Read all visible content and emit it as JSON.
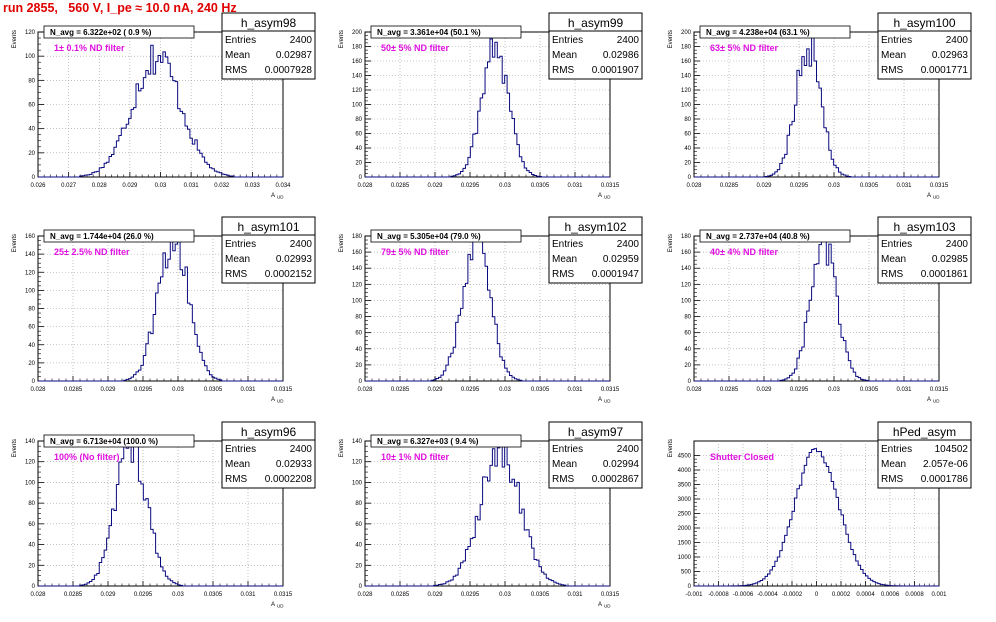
{
  "page_title": "run 2855,   560 V, I_pe ≈ 10.0 nA, 240 Hz",
  "stats_labels": {
    "entries": "Entries",
    "mean": "Mean",
    "rms": "RMS"
  },
  "colors": {
    "histogram": "#0a0a80",
    "annotation": "#e010e0",
    "grid": "#9a9a9a",
    "title": "#e00000"
  },
  "chart_data": [
    {
      "type": "bar",
      "name": "h_asym98",
      "header": "N_avg = 6.322e+02 ( 0.9 %)",
      "annotation": "1± 0.1% ND filter",
      "entries": "2400",
      "mean": "0.02987",
      "rms": "0.0007928",
      "xlabel": "A_UD",
      "ylabel": "Events",
      "xlim": [
        0.026,
        0.034
      ],
      "ylim": [
        0,
        120
      ],
      "xticks": [
        0.026,
        0.027,
        0.028,
        0.029,
        0.03,
        0.031,
        0.032,
        0.033,
        0.034
      ],
      "xtick_labels": [
        "0.026",
        "0.027",
        "0.028",
        "0.029",
        "0.03",
        "0.031",
        "0.032",
        "0.033",
        "0.034"
      ],
      "yticks": [
        0,
        20,
        40,
        60,
        80,
        100,
        120
      ],
      "peak": 100
    },
    {
      "type": "bar",
      "name": "h_asym99",
      "header": "N_avg = 3.361e+04 (50.1 %)",
      "annotation": "50± 5% ND filter",
      "entries": "2400",
      "mean": "0.02986",
      "rms": "0.0001907",
      "xlabel": "A_UD",
      "ylabel": "Events",
      "xlim": [
        0.028,
        0.0315
      ],
      "ylim": [
        0,
        200
      ],
      "xticks": [
        0.028,
        0.0285,
        0.029,
        0.0295,
        0.03,
        0.0305,
        0.031,
        0.0315
      ],
      "xtick_labels": [
        "0.028",
        "0.0285",
        "0.029",
        "0.0295",
        "0.03",
        "0.0305",
        "0.031",
        "0.0315"
      ],
      "yticks": [
        0,
        20,
        40,
        60,
        80,
        100,
        120,
        140,
        160,
        180,
        200
      ],
      "peak": 185
    },
    {
      "type": "bar",
      "name": "h_asym100",
      "header": "N_avg = 4.238e+04 (63.1 %)",
      "annotation": "63± 5% ND filter",
      "entries": "2400",
      "mean": "0.02963",
      "rms": "0.0001771",
      "xlabel": "A_UD",
      "ylabel": "Events",
      "xlim": [
        0.028,
        0.0315
      ],
      "ylim": [
        0,
        200
      ],
      "xticks": [
        0.028,
        0.0285,
        0.029,
        0.0295,
        0.03,
        0.0305,
        0.031,
        0.0315
      ],
      "xtick_labels": [
        "0.028",
        "0.0285",
        "0.029",
        "0.0295",
        "0.03",
        "0.0305",
        "0.031",
        "0.0315"
      ],
      "yticks": [
        0,
        20,
        40,
        60,
        80,
        100,
        120,
        140,
        160,
        180,
        200
      ],
      "peak": 185
    },
    {
      "type": "bar",
      "name": "h_asym101",
      "header": "N_avg = 1.744e+04 (26.0 %)",
      "annotation": "25± 2.5% ND filter",
      "entries": "2400",
      "mean": "0.02993",
      "rms": "0.0002152",
      "xlabel": "A_UD",
      "ylabel": "Events",
      "xlim": [
        0.028,
        0.0315
      ],
      "ylim": [
        0,
        160
      ],
      "xticks": [
        0.028,
        0.0285,
        0.029,
        0.0295,
        0.03,
        0.0305,
        0.031,
        0.0315
      ],
      "xtick_labels": [
        "0.028",
        "0.0285",
        "0.029",
        "0.0295",
        "0.03",
        "0.0305",
        "0.031",
        "0.0315"
      ],
      "yticks": [
        0,
        20,
        40,
        60,
        80,
        100,
        120,
        140,
        160
      ],
      "peak": 160
    },
    {
      "type": "bar",
      "name": "h_asym102",
      "header": "N_avg = 5.305e+04 (79.0 %)",
      "annotation": "79± 5% ND filter",
      "entries": "2400",
      "mean": "0.02959",
      "rms": "0.0001947",
      "xlabel": "A_UD",
      "ylabel": "Events",
      "xlim": [
        0.028,
        0.0315
      ],
      "ylim": [
        0,
        180
      ],
      "xticks": [
        0.028,
        0.0285,
        0.029,
        0.0295,
        0.03,
        0.0305,
        0.031,
        0.0315
      ],
      "xtick_labels": [
        "0.028",
        "0.0285",
        "0.029",
        "0.0295",
        "0.03",
        "0.0305",
        "0.031",
        "0.0315"
      ],
      "yticks": [
        0,
        20,
        40,
        60,
        80,
        100,
        120,
        140,
        160,
        180
      ],
      "peak": 180
    },
    {
      "type": "bar",
      "name": "h_asym103",
      "header": "N_avg = 2.737e+04 (40.8 %)",
      "annotation": "40± 4% ND filter",
      "entries": "2400",
      "mean": "0.02985",
      "rms": "0.0001861",
      "xlabel": "A_UD",
      "ylabel": "Events",
      "xlim": [
        0.028,
        0.0315
      ],
      "ylim": [
        0,
        180
      ],
      "xticks": [
        0.028,
        0.0285,
        0.029,
        0.0295,
        0.03,
        0.0305,
        0.031,
        0.0315
      ],
      "xtick_labels": [
        "0.028",
        "0.0285",
        "0.029",
        "0.0295",
        "0.03",
        "0.0305",
        "0.031",
        "0.0315"
      ],
      "yticks": [
        0,
        20,
        40,
        60,
        80,
        100,
        120,
        140,
        160,
        180
      ],
      "peak": 170
    },
    {
      "type": "bar",
      "name": "h_asym96",
      "header": "N_avg = 6.713e+04 (100.0 %)",
      "annotation": "100% (No filter)",
      "entries": "2400",
      "mean": "0.02933",
      "rms": "0.0002208",
      "xlabel": "A_UD",
      "ylabel": "Events",
      "xlim": [
        0.028,
        0.0315
      ],
      "ylim": [
        0,
        140
      ],
      "xticks": [
        0.028,
        0.0285,
        0.029,
        0.0295,
        0.03,
        0.0305,
        0.031,
        0.0315
      ],
      "xtick_labels": [
        "0.028",
        "0.0285",
        "0.029",
        "0.0295",
        "0.03",
        "0.0305",
        "0.031",
        "0.0315"
      ],
      "yticks": [
        0,
        20,
        40,
        60,
        80,
        100,
        120,
        140
      ],
      "peak": 140
    },
    {
      "type": "bar",
      "name": "h_asym97",
      "header": "N_avg = 6.327e+03 ( 9.4 %)",
      "annotation": "10± 1% ND filter",
      "entries": "2400",
      "mean": "0.02994",
      "rms": "0.0002867",
      "xlabel": "A_UD",
      "ylabel": "Events",
      "xlim": [
        0.028,
        0.0315
      ],
      "ylim": [
        0,
        140
      ],
      "xticks": [
        0.028,
        0.0285,
        0.029,
        0.0295,
        0.03,
        0.0305,
        0.031,
        0.0315
      ],
      "xtick_labels": [
        "0.028",
        "0.0285",
        "0.029",
        "0.0295",
        "0.03",
        "0.0305",
        "0.031",
        "0.0315"
      ],
      "yticks": [
        0,
        20,
        40,
        60,
        80,
        100,
        120,
        140
      ],
      "peak": 130
    },
    {
      "type": "bar",
      "name": "hPed_asym",
      "header": "",
      "annotation": "Shutter Closed",
      "entries": "104502",
      "mean": "2.057e-06",
      "rms": "0.0001786",
      "xlabel": "",
      "ylabel": "Events",
      "xlim": [
        -0.001,
        0.001
      ],
      "ylim": [
        0,
        5000
      ],
      "xticks": [
        -0.001,
        -0.0008,
        -0.0006,
        -0.0004,
        -0.0002,
        0,
        0.0002,
        0.0004,
        0.0006,
        0.0008,
        0.001
      ],
      "xtick_labels": [
        "-0.001",
        "-0.0008",
        "-0.0006",
        "-0.0004",
        "-0.0002",
        "0",
        "0.0002",
        "0.0004",
        "0.0006",
        "0.0008",
        "0.001"
      ],
      "yticks": [
        0,
        500,
        1000,
        1500,
        2000,
        2500,
        3000,
        3500,
        4000,
        4500
      ],
      "peak": 4700
    }
  ]
}
